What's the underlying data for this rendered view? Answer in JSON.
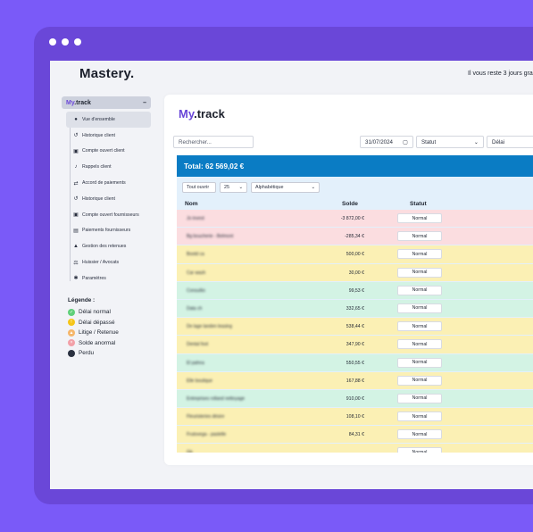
{
  "brand": "Mastery.",
  "trial_text": "Il vous reste 3 jours gra",
  "sidebar": {
    "header_my": "My",
    "header_track": ".track",
    "collapse": "–",
    "items": [
      {
        "label": "Vue d'ensemble",
        "icon": "dashboard-icon",
        "glyph": "●"
      },
      {
        "label": "Historique client",
        "icon": "history-icon",
        "glyph": "↺"
      },
      {
        "label": "Compte ouvert client",
        "icon": "account-icon",
        "glyph": "▣"
      },
      {
        "label": "Rappels client",
        "icon": "bell-icon",
        "glyph": "♪"
      },
      {
        "label": "Accord de paiements",
        "icon": "handshake-icon",
        "glyph": "⇄"
      },
      {
        "label": "Historique client",
        "icon": "history-icon",
        "glyph": "↺"
      },
      {
        "label": "Compte ouvert fournisseurs",
        "icon": "account-icon",
        "glyph": "▣"
      },
      {
        "label": "Paiements fournisseurs",
        "icon": "payment-icon",
        "glyph": "▤"
      },
      {
        "label": "Gestion des retenues",
        "icon": "warning-icon",
        "glyph": "▲"
      },
      {
        "label": "Huissier / Avocats",
        "icon": "law-icon",
        "glyph": "⚖"
      },
      {
        "label": "Paramètres",
        "icon": "gear-icon",
        "glyph": "✱"
      }
    ]
  },
  "legend": {
    "title": "Légende :",
    "items": [
      {
        "label": "Délai normal",
        "color": "#5fd07a",
        "glyph": "✓"
      },
      {
        "label": "Délai dépassé",
        "color": "#f5c518",
        "glyph": "!"
      },
      {
        "label": "Litige / Retenue",
        "color": "#f5b66a",
        "glyph": "▲"
      },
      {
        "label": "Solde anormal",
        "color": "#f2a0a8",
        "glyph": "×"
      },
      {
        "label": "Perdu",
        "color": "#2a3040",
        "glyph": ""
      }
    ]
  },
  "main": {
    "title_my": "My",
    "title_track": ".track",
    "search_placeholder": "Rechercher...",
    "date_value": "31/07/2024",
    "status_select": "Statut",
    "delay_select": "Délai",
    "total_label": "Total: 62 569,02 €",
    "controls": {
      "show": "Tout ouvrir",
      "per_page": "25",
      "sort": "Alphabétique"
    },
    "columns": {
      "name": "Nom",
      "balance": "Solde",
      "status": "Statut"
    },
    "rows": [
      {
        "name": "Jo invest",
        "balance": "-3 872,00 €",
        "status": "Normal",
        "color": "#fbdde0"
      },
      {
        "name": "Bg boucherie - Belmont",
        "balance": "-285,34 €",
        "status": "Normal",
        "color": "#fbdde0"
      },
      {
        "name": "Bootd ca",
        "balance": "500,00 €",
        "status": "Normal",
        "color": "#fbf0b4"
      },
      {
        "name": "Car wash",
        "balance": "30,00 €",
        "status": "Normal",
        "color": "#fbf0b4"
      },
      {
        "name": "Consultio",
        "balance": "99,53 €",
        "status": "Normal",
        "color": "#d3f3e4"
      },
      {
        "name": "Data ch",
        "balance": "332,65 €",
        "status": "Normal",
        "color": "#d3f3e4"
      },
      {
        "name": "De lage landen leasing",
        "balance": "538,44 €",
        "status": "Normal",
        "color": "#fbf0b4"
      },
      {
        "name": "Dental foot",
        "balance": "347,90 €",
        "status": "Normal",
        "color": "#fbf0b4"
      },
      {
        "name": "El pahna",
        "balance": "550,55 €",
        "status": "Normal",
        "color": "#d3f3e4"
      },
      {
        "name": "Elle boutique",
        "balance": "167,88 €",
        "status": "Normal",
        "color": "#fbf0b4"
      },
      {
        "name": "Entreprises rolland nettoyage",
        "balance": "910,00 €",
        "status": "Normal",
        "color": "#d3f3e4"
      },
      {
        "name": "Fleuristeries désire",
        "balance": "108,10 €",
        "status": "Normal",
        "color": "#fbf0b4"
      },
      {
        "name": "Frutovega - pastelle",
        "balance": "84,31 €",
        "status": "Normal",
        "color": "#fbf0b4"
      },
      {
        "name": "Gb",
        "balance": "",
        "status": "Normal",
        "color": "#fbf0b4"
      }
    ]
  }
}
